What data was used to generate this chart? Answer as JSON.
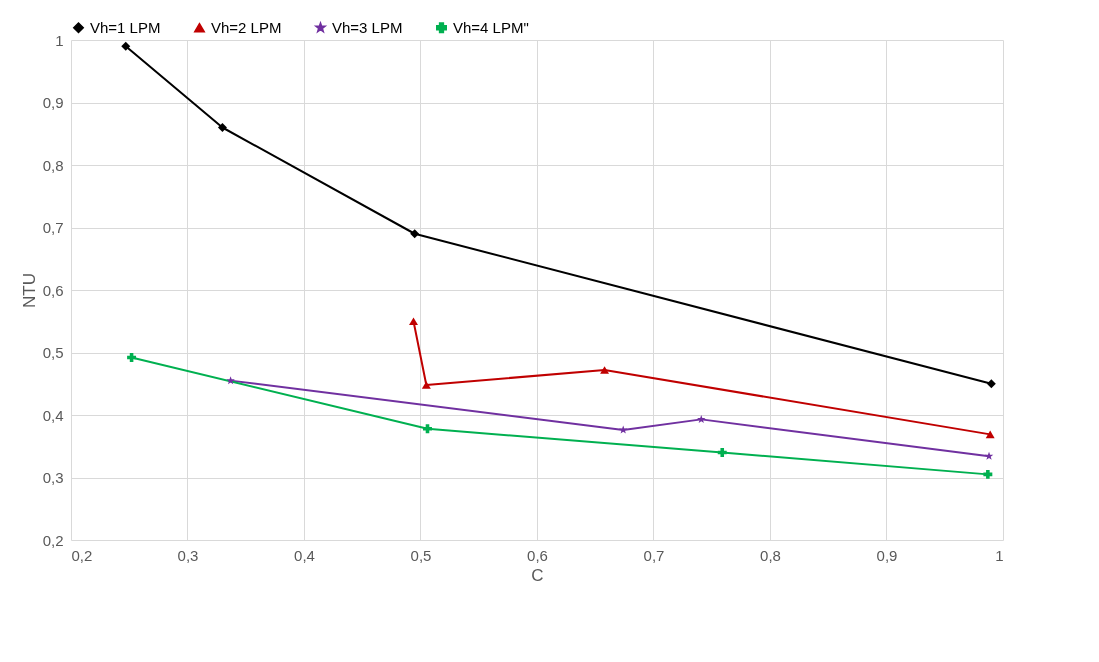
{
  "chart_data": {
    "type": "line",
    "xlabel": "C",
    "ylabel": "NTU",
    "xlim": [
      0.2,
      1
    ],
    "ylim": [
      0.2,
      1
    ],
    "xticks": [
      {
        "value": 0.2,
        "label": "0,2"
      },
      {
        "value": 0.3,
        "label": "0,3"
      },
      {
        "value": 0.4,
        "label": "0,4"
      },
      {
        "value": 0.5,
        "label": "0,5"
      },
      {
        "value": 0.6,
        "label": "0,6"
      },
      {
        "value": 0.7,
        "label": "0,7"
      },
      {
        "value": 0.8,
        "label": "0,8"
      },
      {
        "value": 0.9,
        "label": "0,9"
      },
      {
        "value": 1,
        "label": "1"
      }
    ],
    "yticks": [
      {
        "value": 0.2,
        "label": "0,2"
      },
      {
        "value": 0.3,
        "label": "0,3"
      },
      {
        "value": 0.4,
        "label": "0,4"
      },
      {
        "value": 0.5,
        "label": "0,5"
      },
      {
        "value": 0.6,
        "label": "0,6"
      },
      {
        "value": 0.7,
        "label": "0,7"
      },
      {
        "value": 0.8,
        "label": "0,8"
      },
      {
        "value": 0.9,
        "label": "0,9"
      },
      {
        "value": 1,
        "label": "1"
      }
    ],
    "grid": true,
    "legend": "top left",
    "series": [
      {
        "name": "Vh=1 LPM",
        "color": "#000000",
        "marker": "diamond",
        "x": [
          0.247,
          0.33,
          0.495,
          0.99
        ],
        "values": [
          0.99,
          0.86,
          0.69,
          0.45
        ]
      },
      {
        "name": "Vh=2 LPM",
        "color": "#c00000",
        "marker": "triangle",
        "x": [
          0.494,
          0.505,
          0.658,
          0.989
        ],
        "values": [
          0.55,
          0.448,
          0.472,
          0.369
        ]
      },
      {
        "name": "Vh=3 LPM",
        "color": "#7030a0",
        "marker": "star",
        "x": [
          0.337,
          0.674,
          0.741,
          0.988
        ],
        "values": [
          0.455,
          0.376,
          0.393,
          0.334
        ]
      },
      {
        "name": "Vh=4 LPM\"",
        "color": "#00b050",
        "marker": "cross",
        "x": [
          0.252,
          0.506,
          0.759,
          0.987
        ],
        "values": [
          0.492,
          0.378,
          0.34,
          0.305
        ]
      }
    ]
  }
}
